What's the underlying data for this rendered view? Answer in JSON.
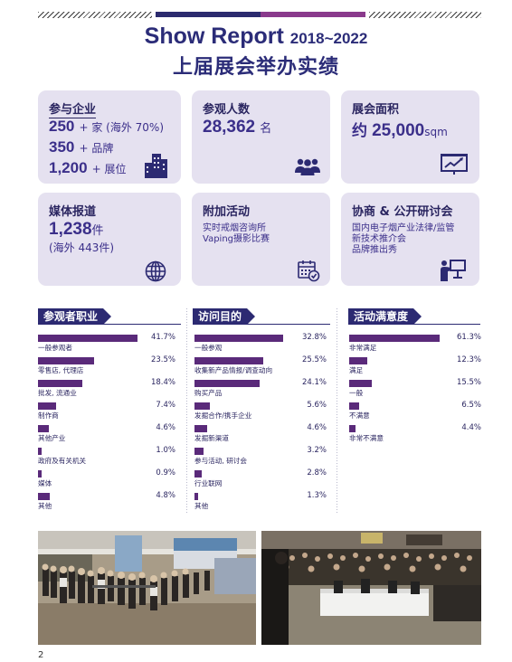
{
  "header": {
    "title_main": "Show Report",
    "title_years": "2018~2022",
    "subtitle": "上届展会举办实绩"
  },
  "cards": {
    "exhibitors": {
      "title": "参与企业",
      "l1_num": "250",
      "l1_text": "+ 家 (海外 70%)",
      "l2_num": "350",
      "l2_text": "+ 品牌",
      "l3_num": "1,200",
      "l3_text": "+ 展位",
      "icon": "buildings-icon"
    },
    "visitors": {
      "title": "参观人数",
      "num": "28,362",
      "unit": "名",
      "icon": "people-icon"
    },
    "area": {
      "title": "展会面积",
      "prefix": "约",
      "num": "25,000",
      "unit": "sqm",
      "icon": "presentation-chart-icon"
    },
    "media": {
      "title": "媒体报道",
      "num": "1,238",
      "unit": "件",
      "sub": "(海外 443件)",
      "icon": "globe-icon"
    },
    "events": {
      "title": "附加活动",
      "l1": "实时戒烟咨询所",
      "l2": "Vaping摄影比赛",
      "icon": "calendar-icon"
    },
    "seminar": {
      "title": "协商 & 公开研讨会",
      "l1": "国内电子烟产业法律/监管",
      "l2": "新技术推介会",
      "l3": "品牌推出秀",
      "icon": "speaker-board-icon"
    }
  },
  "colors": {
    "navy": "#2c2a72",
    "purple_bar": "#5a2a7a",
    "card_bg": "#e5e1f0"
  },
  "chart_data": [
    {
      "type": "bar",
      "title": "参观者职业",
      "categories": [
        "一般参观者",
        "零售店, 代理店",
        "批发, 流通业",
        "制作商",
        "其他产业",
        "政府及有关机关",
        "媒体",
        "其他"
      ],
      "values": [
        41.7,
        23.5,
        18.4,
        7.4,
        4.6,
        1.0,
        0.9,
        4.8
      ],
      "labels": [
        "41.7%",
        "23.5%",
        "18.4%",
        "7.4%",
        "4.6%",
        "1.0%",
        "0.9%",
        "4.8%"
      ]
    },
    {
      "type": "bar",
      "title": "访问目的",
      "categories": [
        "一般参观",
        "收集新产品情报/调查动向",
        "购买产品",
        "发掘合作/携手企业",
        "发掘新渠道",
        "参与活动, 研讨会",
        "行业联网",
        "其他"
      ],
      "values": [
        32.8,
        25.5,
        24.1,
        5.6,
        4.6,
        3.2,
        2.8,
        1.3
      ],
      "labels": [
        "32.8%",
        "25.5%",
        "24.1%",
        "5.6%",
        "4.6%",
        "3.2%",
        "2.8%",
        "1.3%"
      ]
    },
    {
      "type": "bar",
      "title": "活动满意度",
      "categories": [
        "非常满足",
        "满足",
        "一般",
        "不满意",
        "非常不满意"
      ],
      "values": [
        61.3,
        12.3,
        15.5,
        6.5,
        4.4
      ],
      "labels": [
        "61.3%",
        "12.3%",
        "15.5%",
        "6.5%",
        "4.4%"
      ]
    }
  ],
  "photos": {
    "left": "exhibition-crowd-photo",
    "right": "stage-audience-photo"
  },
  "page_number": "2"
}
